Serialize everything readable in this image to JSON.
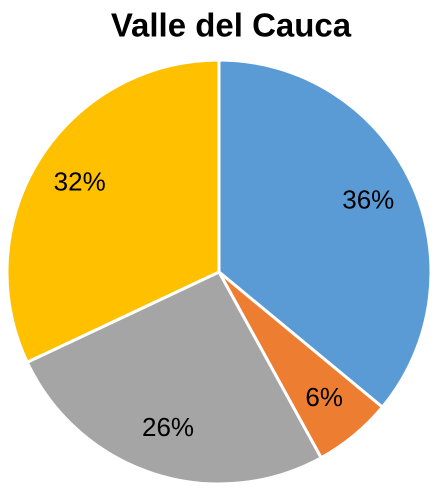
{
  "chart_data": {
    "type": "pie",
    "title": "Valle del Cauca",
    "values": [
      36,
      6,
      26,
      32
    ],
    "value_labels": [
      "36%",
      "6%",
      "26%",
      "32%"
    ],
    "colors": [
      "#5b9bd5",
      "#ed7d31",
      "#a5a5a5",
      "#ffc000"
    ]
  }
}
